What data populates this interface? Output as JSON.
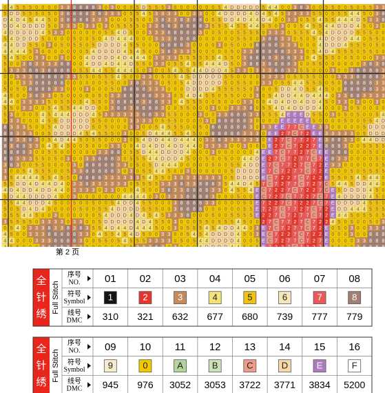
{
  "pattern": {
    "page_label": "第 2 页"
  },
  "legend": [
    {
      "title_cn": "全针绣",
      "title_en": "Full Stitch",
      "row_labels": [
        {
          "cn": "序号",
          "en": "NO."
        },
        {
          "cn": "符号",
          "en": "Symbol"
        },
        {
          "cn": "线号",
          "en": "DMC"
        }
      ],
      "entries": [
        {
          "no": "01",
          "symbol": "1",
          "dmc": "310",
          "color": "#141414"
        },
        {
          "no": "02",
          "symbol": "2",
          "dmc": "321",
          "color": "#e2372a"
        },
        {
          "no": "03",
          "symbol": "3",
          "dmc": "632",
          "color": "#c48a58"
        },
        {
          "no": "04",
          "symbol": "4",
          "dmc": "677",
          "color": "#f6e27a"
        },
        {
          "no": "05",
          "symbol": "5",
          "dmc": "680",
          "color": "#f0c214"
        },
        {
          "no": "06",
          "symbol": "6",
          "dmc": "739",
          "color": "#f5e6bc"
        },
        {
          "no": "07",
          "symbol": "7",
          "dmc": "777",
          "color": "#e85a58"
        },
        {
          "no": "08",
          "symbol": "8",
          "dmc": "779",
          "color": "#a08072"
        }
      ]
    },
    {
      "title_cn": "全针绣",
      "title_en": "Full Stitch",
      "row_labels": [
        {
          "cn": "序号",
          "en": "NO."
        },
        {
          "cn": "符号",
          "en": "Symbol"
        },
        {
          "cn": "线号",
          "en": "DMC"
        }
      ],
      "entries": [
        {
          "no": "09",
          "symbol": "9",
          "dmc": "945",
          "color": "#f6ebcc"
        },
        {
          "no": "10",
          "symbol": "0",
          "dmc": "976",
          "color": "#f2c800"
        },
        {
          "no": "11",
          "symbol": "A",
          "dmc": "3052",
          "color": "#b4d49c"
        },
        {
          "no": "12",
          "symbol": "B",
          "dmc": "3053",
          "color": "#cce2b4"
        },
        {
          "no": "13",
          "symbol": "C",
          "dmc": "3722",
          "color": "#ee9c8a"
        },
        {
          "no": "14",
          "symbol": "D",
          "dmc": "3771",
          "color": "#f8d8a6"
        },
        {
          "no": "15",
          "symbol": "E",
          "dmc": "3834",
          "color": "#ae7cbe"
        },
        {
          "no": "16",
          "symbol": "F",
          "dmc": "5200",
          "color": "#ffffff"
        }
      ]
    }
  ]
}
